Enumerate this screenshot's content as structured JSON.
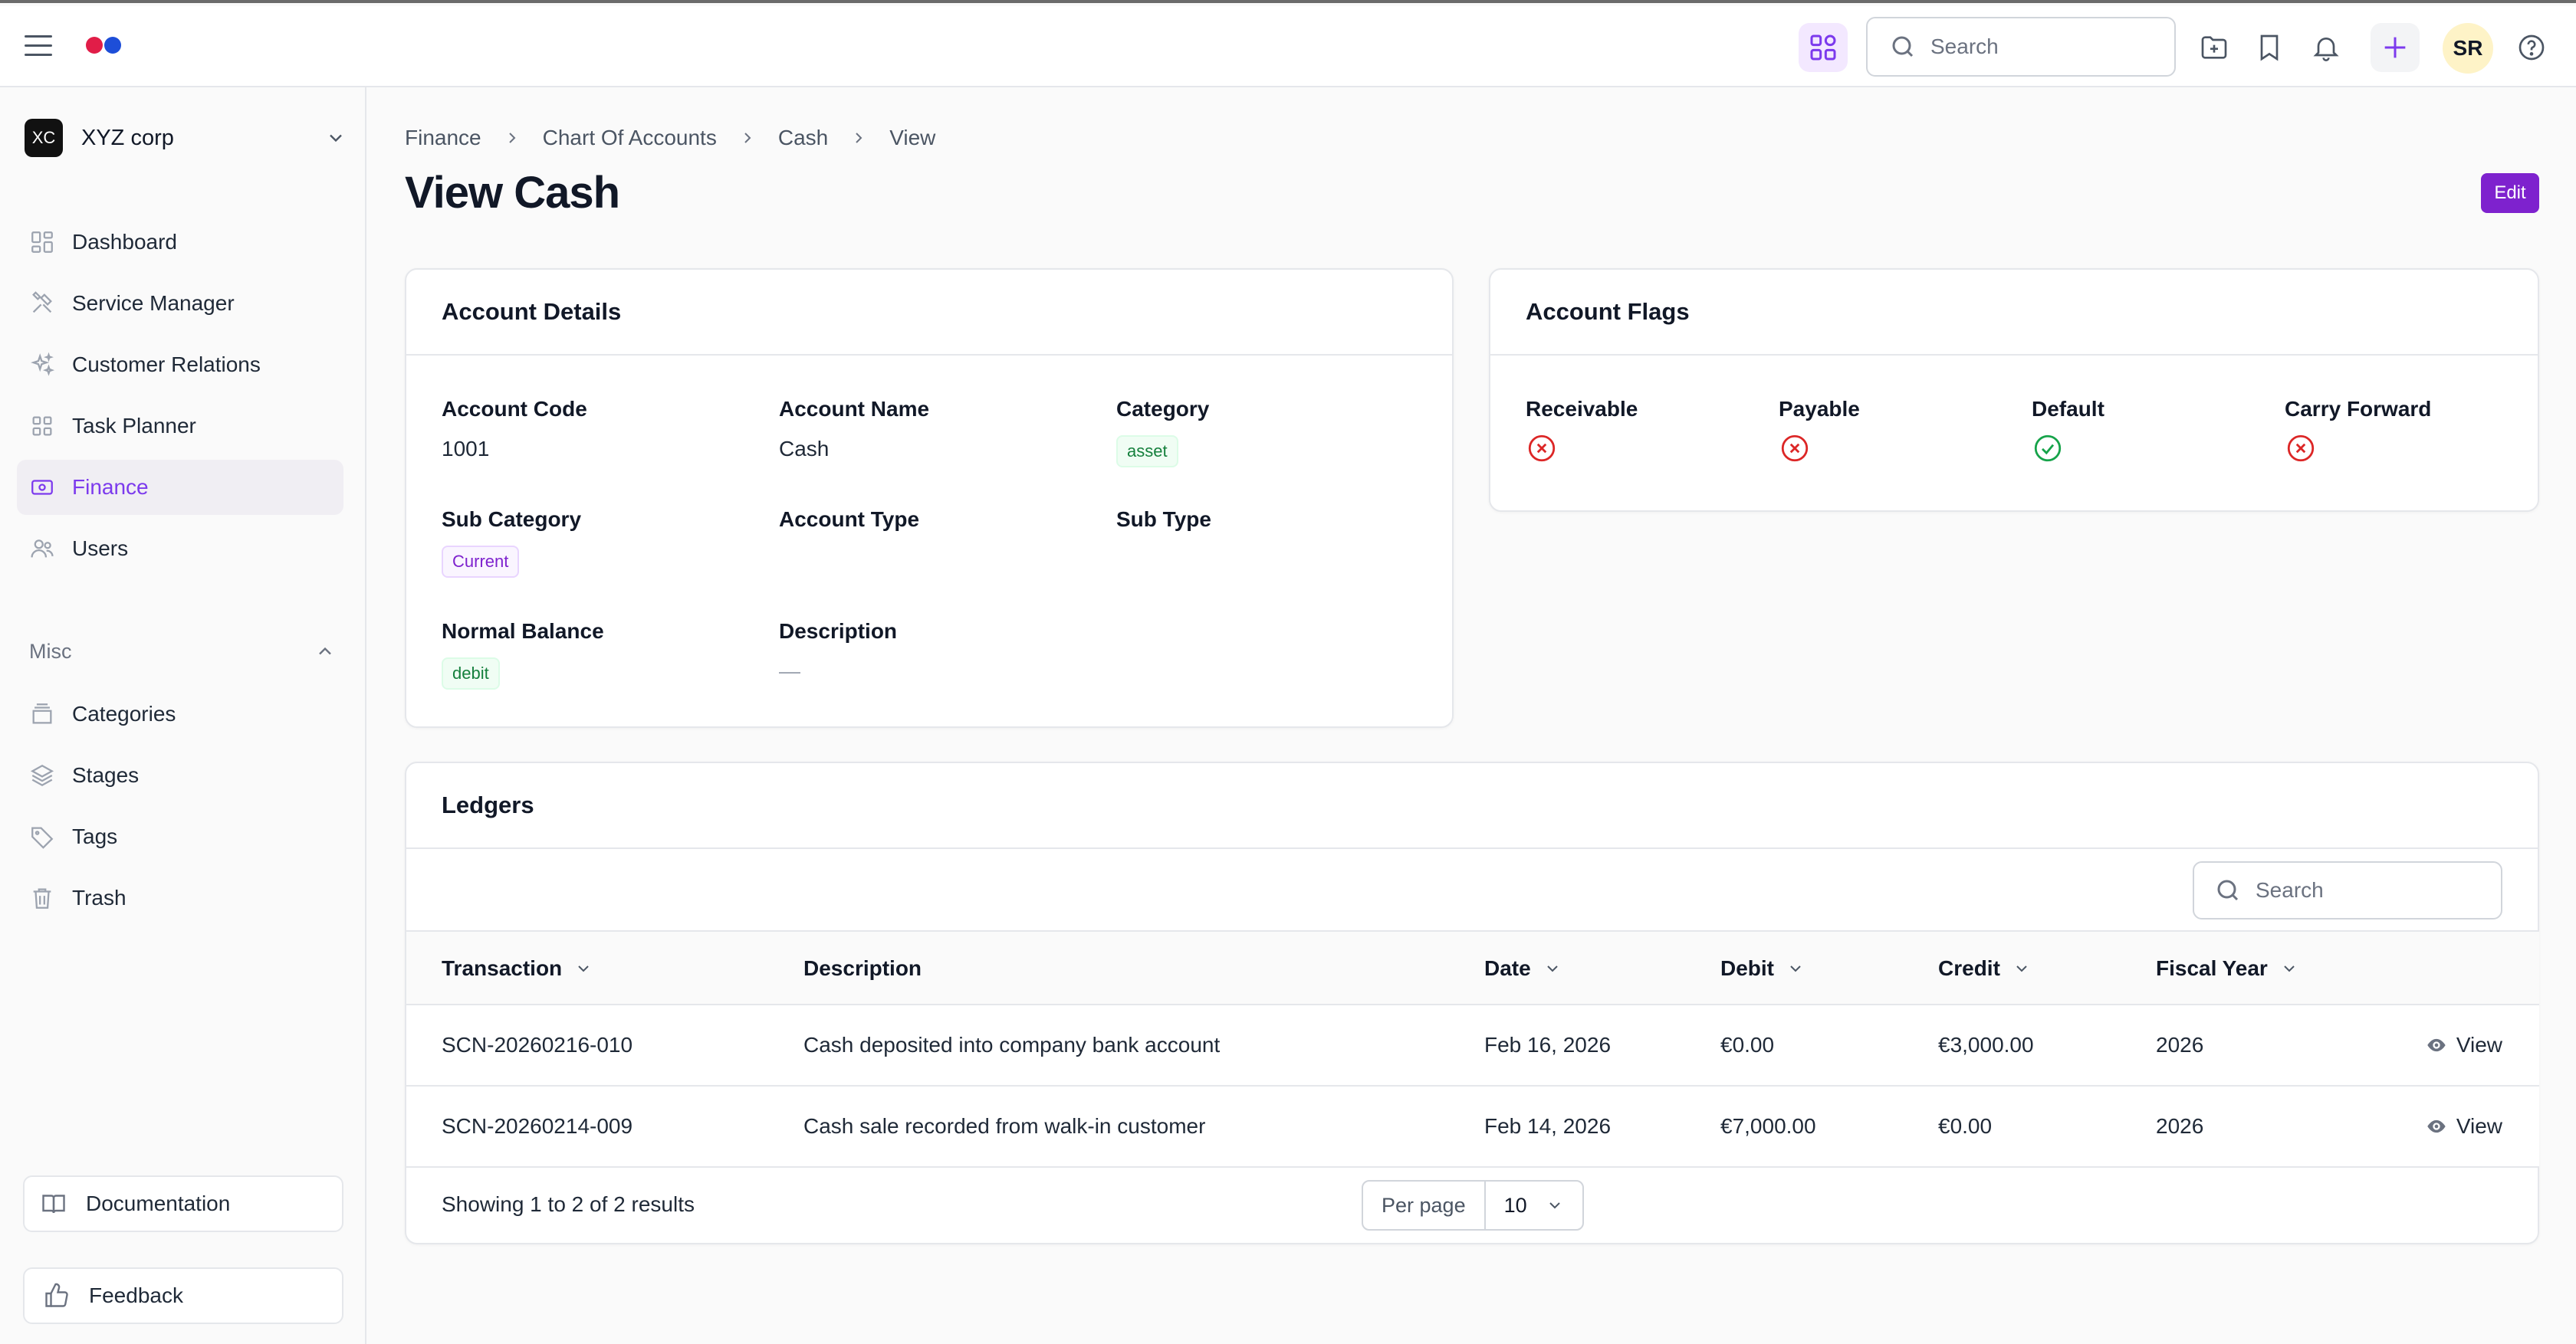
{
  "topbar": {
    "search_placeholder": "Search",
    "avatar_initials": "SR",
    "logo_colors": [
      "#e11d48",
      "#1d4ed8"
    ]
  },
  "sidebar": {
    "org_badge": "XC",
    "org_name": "XYZ corp",
    "items": [
      {
        "label": "Dashboard",
        "icon": "dashboard-icon"
      },
      {
        "label": "Service Manager",
        "icon": "tools-icon"
      },
      {
        "label": "Customer Relations",
        "icon": "sparkles-icon"
      },
      {
        "label": "Task Planner",
        "icon": "grid-icon"
      },
      {
        "label": "Finance",
        "icon": "money-icon",
        "active": true
      },
      {
        "label": "Users",
        "icon": "users-icon"
      }
    ],
    "misc_label": "Misc",
    "misc_items": [
      {
        "label": "Categories",
        "icon": "archive-icon"
      },
      {
        "label": "Stages",
        "icon": "layers-icon"
      },
      {
        "label": "Tags",
        "icon": "tag-icon"
      },
      {
        "label": "Trash",
        "icon": "trash-icon"
      }
    ],
    "documentation_label": "Documentation",
    "feedback_label": "Feedback"
  },
  "breadcrumb": [
    "Finance",
    "Chart Of Accounts",
    "Cash",
    "View"
  ],
  "page_title": "View Cash",
  "edit_label": "Edit",
  "account_details": {
    "title": "Account Details",
    "account_code_label": "Account Code",
    "account_code": "1001",
    "account_name_label": "Account Name",
    "account_name": "Cash",
    "category_label": "Category",
    "category": "asset",
    "sub_category_label": "Sub Category",
    "sub_category": "Current",
    "account_type_label": "Account Type",
    "sub_type_label": "Sub Type",
    "normal_balance_label": "Normal Balance",
    "normal_balance": "debit",
    "description_label": "Description",
    "description": "—"
  },
  "account_flags": {
    "title": "Account Flags",
    "flags": [
      {
        "label": "Receivable",
        "value": false
      },
      {
        "label": "Payable",
        "value": false
      },
      {
        "label": "Default",
        "value": true
      },
      {
        "label": "Carry Forward",
        "value": false
      }
    ]
  },
  "ledgers": {
    "title": "Ledgers",
    "search_placeholder": "Search",
    "columns": [
      "Transaction",
      "Description",
      "Date",
      "Debit",
      "Credit",
      "Fiscal Year"
    ],
    "rows": [
      {
        "transaction": "SCN-20260216-010",
        "description": "Cash deposited into company bank account",
        "date": "Feb 16, 2026",
        "debit": "€0.00",
        "credit": "€3,000.00",
        "fiscal_year": "2026",
        "action": "View"
      },
      {
        "transaction": "SCN-20260214-009",
        "description": "Cash sale recorded from walk-in customer",
        "date": "Feb 14, 2026",
        "debit": "€7,000.00",
        "credit": "€0.00",
        "fiscal_year": "2026",
        "action": "View"
      }
    ],
    "showing_text": "Showing 1 to 2 of 2 results",
    "per_page_label": "Per page",
    "per_page_value": "10"
  }
}
